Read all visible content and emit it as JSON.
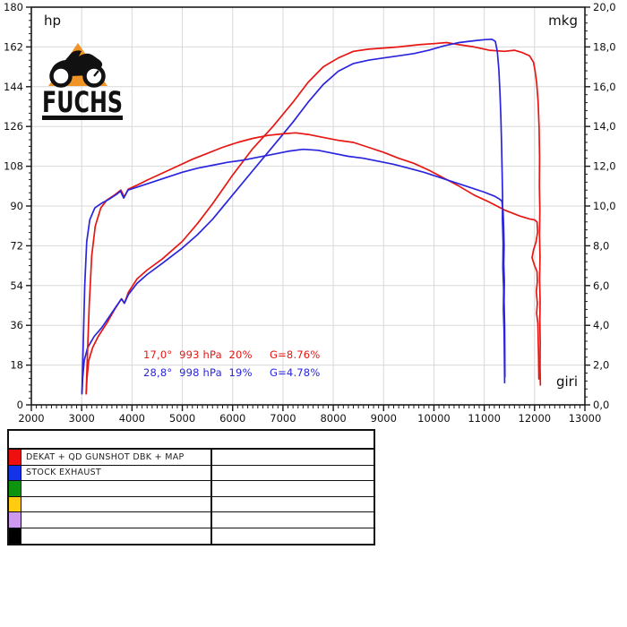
{
  "logo": {
    "text": "FUCHS",
    "triangle_color": "#f09426"
  },
  "chart_data": {
    "type": "line",
    "title": "",
    "grid": true,
    "x_axis": {
      "label": "giri",
      "min": 2000,
      "max": 13000,
      "major_tick": 1000,
      "minor_tick": 100,
      "tick_labels": [
        "2000",
        "3000",
        "4000",
        "5000",
        "6000",
        "7000",
        "8000",
        "9000",
        "10000",
        "11000",
        "12000",
        "13000"
      ]
    },
    "y_left": {
      "label": "hp",
      "min": 0,
      "max": 180,
      "major_tick": 18,
      "minor_tick": 3,
      "tick_labels": [
        "0",
        "18",
        "36",
        "54",
        "72",
        "90",
        "108",
        "126",
        "144",
        "162",
        "180"
      ]
    },
    "y_right": {
      "label": "mkg",
      "min": 0,
      "max": 20,
      "major_tick": 2,
      "minor_tick": 0.4,
      "tick_labels": [
        "0,0",
        "2,0",
        "4,0",
        "6,0",
        "8,0",
        "10,0",
        "12,0",
        "14,0",
        "16,0",
        "18,0",
        "20,0"
      ]
    },
    "annotations": [
      {
        "text": "17,0°  993 hPa  20%     G=8.76%",
        "color": "#e81613"
      },
      {
        "text": "28,8°  998 hPa  19%     G=4.78%",
        "color": "#2a25dd"
      }
    ],
    "series": [
      {
        "name": "power-dekat-qd-gunshot-dbk-map",
        "unit": "hp",
        "axis": "left",
        "color": "#e81613",
        "points": [
          [
            3090,
            5
          ],
          [
            3105,
            12
          ],
          [
            3140,
            20
          ],
          [
            3220,
            26
          ],
          [
            3330,
            31
          ],
          [
            3500,
            37
          ],
          [
            3650,
            43
          ],
          [
            3790,
            48
          ],
          [
            3850,
            46
          ],
          [
            3930,
            51
          ],
          [
            4100,
            57
          ],
          [
            4300,
            61
          ],
          [
            4600,
            66
          ],
          [
            5000,
            74
          ],
          [
            5300,
            82
          ],
          [
            5600,
            91
          ],
          [
            6000,
            104
          ],
          [
            6400,
            116
          ],
          [
            6800,
            126
          ],
          [
            7200,
            137
          ],
          [
            7500,
            146
          ],
          [
            7800,
            153
          ],
          [
            8100,
            157
          ],
          [
            8400,
            160
          ],
          [
            8700,
            161
          ],
          [
            9000,
            161.5
          ],
          [
            9300,
            162
          ],
          [
            9700,
            163
          ],
          [
            10000,
            163.5
          ],
          [
            10250,
            164
          ],
          [
            10500,
            163
          ],
          [
            10800,
            162
          ],
          [
            11100,
            160.5
          ],
          [
            11400,
            160
          ],
          [
            11600,
            160.5
          ],
          [
            11750,
            159.5
          ],
          [
            11900,
            158
          ],
          [
            11980,
            155
          ],
          [
            12010,
            151
          ],
          [
            12040,
            146
          ],
          [
            12070,
            137
          ],
          [
            12090,
            125
          ],
          [
            12100,
            112
          ],
          [
            12095,
            99
          ],
          [
            12105,
            88
          ],
          [
            12098,
            77
          ],
          [
            12108,
            67
          ],
          [
            12100,
            57
          ],
          [
            12110,
            47
          ],
          [
            12105,
            38
          ],
          [
            12112,
            28
          ],
          [
            12108,
            18
          ],
          [
            12115,
            9
          ]
        ]
      },
      {
        "name": "power-stock-exhaust",
        "unit": "hp",
        "axis": "left",
        "color": "#2a25dd",
        "points": [
          [
            3005,
            5
          ],
          [
            3020,
            12
          ],
          [
            3050,
            20
          ],
          [
            3120,
            26
          ],
          [
            3250,
            31
          ],
          [
            3400,
            35
          ],
          [
            3550,
            40
          ],
          [
            3700,
            45
          ],
          [
            3790,
            48
          ],
          [
            3850,
            46
          ],
          [
            3930,
            50
          ],
          [
            4100,
            55
          ],
          [
            4300,
            59
          ],
          [
            4600,
            64
          ],
          [
            5000,
            71
          ],
          [
            5300,
            77
          ],
          [
            5600,
            84
          ],
          [
            6000,
            95
          ],
          [
            6400,
            106
          ],
          [
            6800,
            117
          ],
          [
            7200,
            128
          ],
          [
            7500,
            137
          ],
          [
            7800,
            145
          ],
          [
            8100,
            151
          ],
          [
            8400,
            154.5
          ],
          [
            8700,
            156
          ],
          [
            9000,
            157
          ],
          [
            9300,
            158
          ],
          [
            9600,
            159
          ],
          [
            9900,
            160.5
          ],
          [
            10200,
            162.5
          ],
          [
            10500,
            164
          ],
          [
            10800,
            164.8
          ],
          [
            11000,
            165.3
          ],
          [
            11150,
            165.5
          ],
          [
            11220,
            164.5
          ],
          [
            11260,
            160
          ],
          [
            11290,
            152
          ],
          [
            11310,
            142
          ],
          [
            11330,
            130
          ],
          [
            11345,
            117
          ],
          [
            11355,
            105
          ],
          [
            11365,
            94
          ],
          [
            11360,
            84
          ],
          [
            11375,
            73
          ],
          [
            11370,
            62
          ],
          [
            11385,
            52
          ],
          [
            11380,
            43
          ],
          [
            11395,
            33
          ],
          [
            11400,
            22
          ],
          [
            11405,
            10
          ]
        ]
      },
      {
        "name": "torque-dekat-qd-gunshot-dbk-map",
        "unit": "mkg",
        "axis": "right",
        "color": "#e81613",
        "points": [
          [
            3090,
            0.6
          ],
          [
            3115,
            2.5
          ],
          [
            3150,
            5.0
          ],
          [
            3200,
            7.5
          ],
          [
            3270,
            9.0
          ],
          [
            3380,
            9.9
          ],
          [
            3500,
            10.3
          ],
          [
            3650,
            10.55
          ],
          [
            3780,
            10.8
          ],
          [
            3845,
            10.45
          ],
          [
            3925,
            10.85
          ],
          [
            4100,
            11.05
          ],
          [
            4300,
            11.3
          ],
          [
            4600,
            11.65
          ],
          [
            4900,
            12.0
          ],
          [
            5200,
            12.35
          ],
          [
            5500,
            12.65
          ],
          [
            5800,
            12.95
          ],
          [
            6100,
            13.2
          ],
          [
            6400,
            13.4
          ],
          [
            6700,
            13.55
          ],
          [
            7000,
            13.63
          ],
          [
            7250,
            13.68
          ],
          [
            7500,
            13.6
          ],
          [
            7800,
            13.45
          ],
          [
            8100,
            13.3
          ],
          [
            8400,
            13.2
          ],
          [
            8700,
            12.95
          ],
          [
            9000,
            12.7
          ],
          [
            9300,
            12.4
          ],
          [
            9600,
            12.15
          ],
          [
            9900,
            11.8
          ],
          [
            10200,
            11.4
          ],
          [
            10500,
            11.0
          ],
          [
            10800,
            10.55
          ],
          [
            11100,
            10.2
          ],
          [
            11400,
            9.8
          ],
          [
            11700,
            9.5
          ],
          [
            11900,
            9.35
          ],
          [
            12000,
            9.3
          ],
          [
            12050,
            9.2
          ],
          [
            12060,
            8.7
          ],
          [
            12030,
            8.2
          ],
          [
            11980,
            7.8
          ],
          [
            11950,
            7.4
          ],
          [
            12000,
            7.0
          ],
          [
            12050,
            6.7
          ],
          [
            12055,
            6.2
          ],
          [
            12035,
            5.7
          ],
          [
            12055,
            5.1
          ],
          [
            12040,
            4.6
          ],
          [
            12065,
            4.1
          ],
          [
            12070,
            3.4
          ],
          [
            12080,
            2.4
          ],
          [
            12085,
            1.3
          ]
        ]
      },
      {
        "name": "torque-stock-exhaust",
        "unit": "mkg",
        "axis": "right",
        "color": "#2a25dd",
        "points": [
          [
            3005,
            0.6
          ],
          [
            3030,
            3.0
          ],
          [
            3060,
            6.0
          ],
          [
            3100,
            8.2
          ],
          [
            3160,
            9.3
          ],
          [
            3260,
            9.9
          ],
          [
            3400,
            10.15
          ],
          [
            3550,
            10.35
          ],
          [
            3700,
            10.6
          ],
          [
            3770,
            10.75
          ],
          [
            3835,
            10.4
          ],
          [
            3920,
            10.8
          ],
          [
            4100,
            10.95
          ],
          [
            4400,
            11.2
          ],
          [
            4700,
            11.45
          ],
          [
            5000,
            11.7
          ],
          [
            5300,
            11.9
          ],
          [
            5600,
            12.05
          ],
          [
            5900,
            12.2
          ],
          [
            6200,
            12.3
          ],
          [
            6500,
            12.45
          ],
          [
            6800,
            12.6
          ],
          [
            7100,
            12.75
          ],
          [
            7400,
            12.85
          ],
          [
            7700,
            12.8
          ],
          [
            8000,
            12.65
          ],
          [
            8300,
            12.5
          ],
          [
            8600,
            12.4
          ],
          [
            8900,
            12.25
          ],
          [
            9200,
            12.1
          ],
          [
            9500,
            11.9
          ],
          [
            9800,
            11.7
          ],
          [
            10100,
            11.45
          ],
          [
            10400,
            11.2
          ],
          [
            10700,
            10.95
          ],
          [
            11000,
            10.7
          ],
          [
            11200,
            10.5
          ],
          [
            11300,
            10.35
          ],
          [
            11350,
            10.25
          ],
          [
            11375,
            9.7
          ],
          [
            11385,
            8.9
          ],
          [
            11395,
            8.0
          ],
          [
            11388,
            7.1
          ],
          [
            11400,
            6.2
          ],
          [
            11395,
            5.2
          ],
          [
            11405,
            4.0
          ],
          [
            11408,
            2.6
          ],
          [
            11410,
            1.4
          ]
        ]
      }
    ]
  },
  "legend": {
    "header_label": "",
    "rows": [
      {
        "color": "#ee0f0f",
        "label": "DEKAT + QD GUNSHOT DBK + MAP"
      },
      {
        "color": "#1433e8",
        "label": "STOCK EXHAUST"
      },
      {
        "color": "#0d930d",
        "label": ""
      },
      {
        "color": "#ffcc11",
        "label": ""
      },
      {
        "color": "#cc99ee",
        "label": ""
      },
      {
        "color": "#000000",
        "label": ""
      }
    ]
  }
}
